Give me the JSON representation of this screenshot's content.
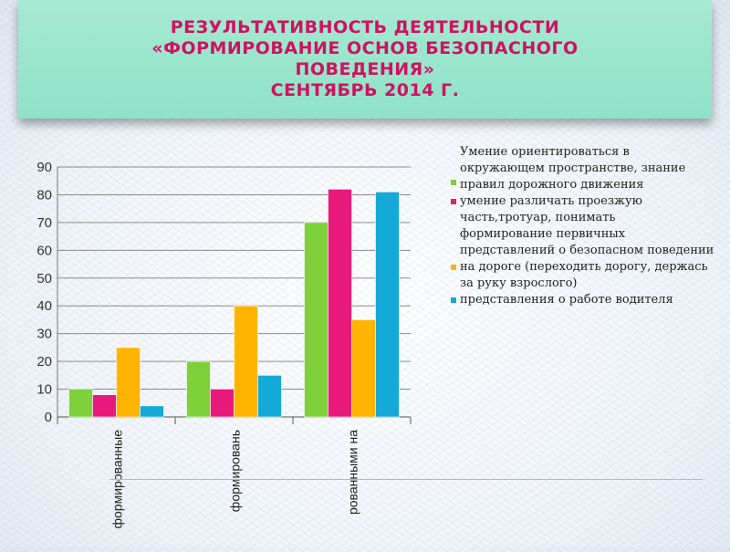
{
  "header": {
    "title_lines": [
      "РЕЗУЛЬТАТИВНОСТЬ ДЕЯТЕЛЬНОСТИ",
      "«ФОРМИРОВАНИЕ ОСНОВ БЕЗОПАСНОГО",
      "ПОВЕДЕНИЯ»",
      "СЕНТЯБРЬ 2014 Г."
    ]
  },
  "chart_data": {
    "type": "bar",
    "categories": [
      "формированные",
      "формировань",
      "рованными на"
    ],
    "ylim": [
      0,
      90
    ],
    "yticks": [
      0,
      10,
      20,
      30,
      40,
      50,
      60,
      70,
      80,
      90
    ],
    "grid": true,
    "legend_position": "right",
    "series": [
      {
        "name": "Умение ориентироваться в окружающем пространстве, знание правил дорожного движения",
        "color": "#7ed13b",
        "values": [
          10,
          20,
          70
        ]
      },
      {
        "name": "умение различать  проезжую часть,тротуар, понимать",
        "color": "#e8197a",
        "values": [
          8,
          10,
          82
        ]
      },
      {
        "name": "формирование первичных представлений о безопасном поведении на дороге (переходить дорогу, держась за руку взрослого)",
        "color": "#ffb400",
        "values": [
          25,
          40,
          35
        ]
      },
      {
        "name": "представления о работе водителя",
        "color": "#14a9d6",
        "values": [
          4,
          15,
          81
        ]
      }
    ]
  }
}
